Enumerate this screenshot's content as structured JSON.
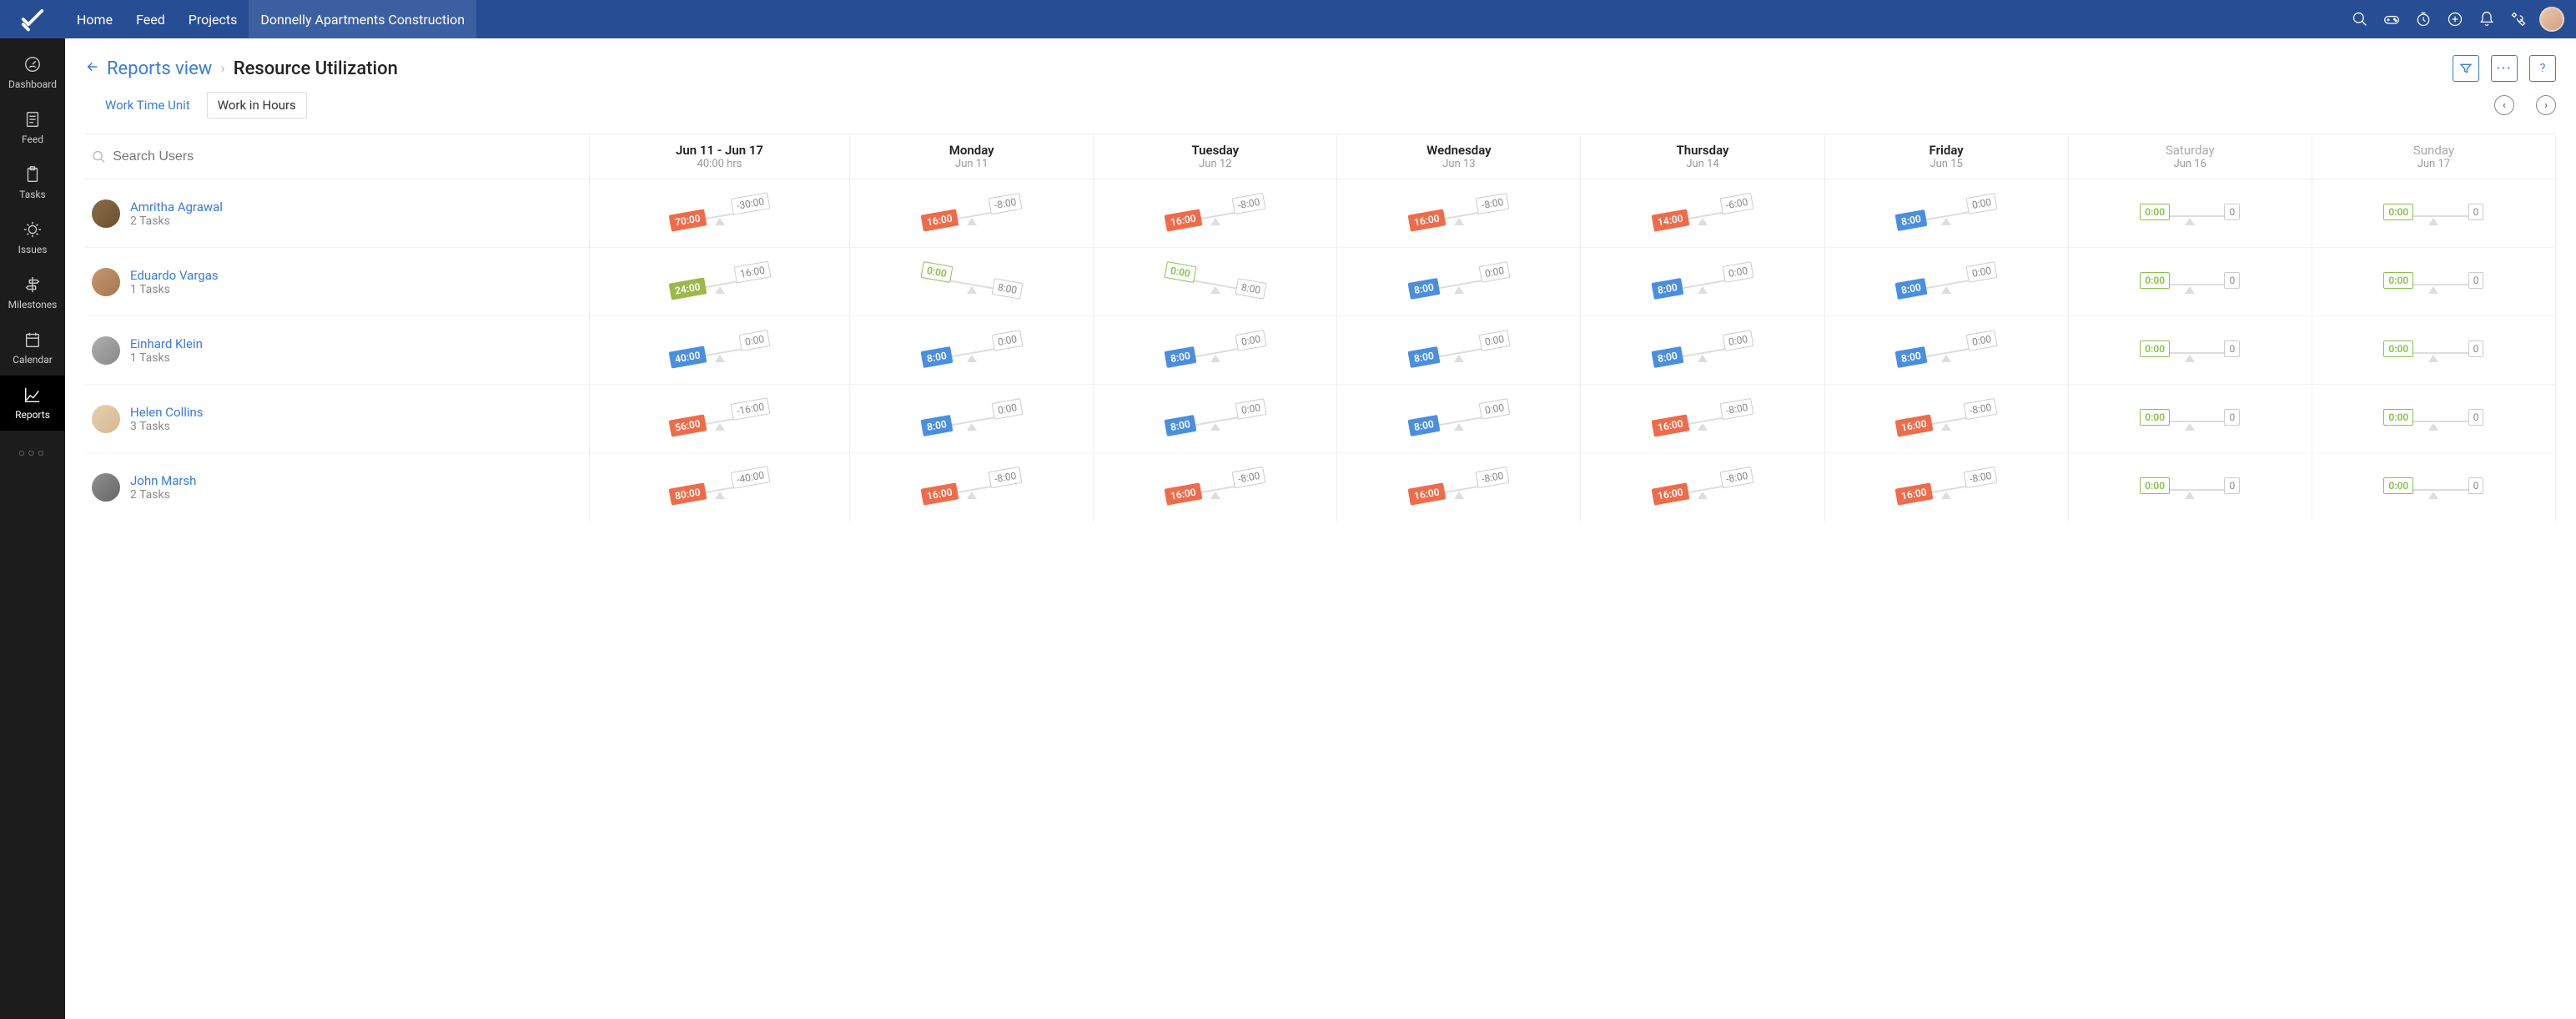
{
  "topnav": {
    "links": [
      "Home",
      "Feed",
      "Projects",
      "Donnelly Apartments Construction"
    ],
    "active_index": 3
  },
  "sidebar": {
    "items": [
      {
        "label": "Dashboard",
        "icon": "gauge"
      },
      {
        "label": "Feed",
        "icon": "doc"
      },
      {
        "label": "Tasks",
        "icon": "clipboard"
      },
      {
        "label": "Issues",
        "icon": "bug"
      },
      {
        "label": "Milestones",
        "icon": "signpost"
      },
      {
        "label": "Calendar",
        "icon": "calendar"
      },
      {
        "label": "Reports",
        "icon": "chart"
      }
    ],
    "active_index": 6
  },
  "breadcrumb": {
    "back": "Reports view",
    "current": "Resource Utilization"
  },
  "filter": {
    "unit_label": "Work Time Unit",
    "unit_value": "Work in Hours"
  },
  "search_placeholder": "Search Users",
  "colors": {
    "red": "#ef6b4a",
    "blue": "#4a8ee0",
    "green": "#8bc04a",
    "olive": "#9cb84a",
    "grey": "#cccccc"
  },
  "columns": {
    "total": {
      "line1": "Jun 11 - Jun 17",
      "line2": "40:00 hrs"
    },
    "days": [
      {
        "name": "Monday",
        "date": "Jun 11",
        "weekend": false
      },
      {
        "name": "Tuesday",
        "date": "Jun 12",
        "weekend": false
      },
      {
        "name": "Wednesday",
        "date": "Jun 13",
        "weekend": false
      },
      {
        "name": "Thursday",
        "date": "Jun 14",
        "weekend": false
      },
      {
        "name": "Friday",
        "date": "Jun 15",
        "weekend": false
      },
      {
        "name": "Saturday",
        "date": "Jun 16",
        "weekend": true
      },
      {
        "name": "Sunday",
        "date": "Jun 17",
        "weekend": true
      }
    ]
  },
  "rows": [
    {
      "name": "Amritha Agrawal",
      "tasks": "2 Tasks",
      "avatar": "c1",
      "cells": [
        {
          "left": "70:00",
          "left_color": "red",
          "right": "-30:00",
          "right_color": "grey",
          "tilt": "left"
        },
        {
          "left": "16:00",
          "left_color": "red",
          "right": "-8:00",
          "right_color": "grey",
          "tilt": "left"
        },
        {
          "left": "16:00",
          "left_color": "red",
          "right": "-8:00",
          "right_color": "grey",
          "tilt": "left"
        },
        {
          "left": "16:00",
          "left_color": "red",
          "right": "-8:00",
          "right_color": "grey",
          "tilt": "left"
        },
        {
          "left": "14:00",
          "left_color": "red",
          "right": "-6:00",
          "right_color": "grey",
          "tilt": "left"
        },
        {
          "left": "8:00",
          "left_color": "blue",
          "right": "0:00",
          "right_color": "grey",
          "tilt": "left"
        },
        {
          "left": "0:00",
          "left_color": "green",
          "right": "0",
          "right_color": "grey",
          "tilt": "flat"
        },
        {
          "left": "0:00",
          "left_color": "green",
          "right": "0",
          "right_color": "grey",
          "tilt": "flat"
        }
      ]
    },
    {
      "name": "Eduardo Vargas",
      "tasks": "1 Tasks",
      "avatar": "c2",
      "cells": [
        {
          "left": "24:00",
          "left_color": "olive",
          "right": "16:00",
          "right_color": "grey",
          "tilt": "left"
        },
        {
          "left": "0:00",
          "left_color": "green",
          "right": "8:00",
          "right_color": "grey",
          "tilt": "right"
        },
        {
          "left": "0:00",
          "left_color": "green",
          "right": "8:00",
          "right_color": "grey",
          "tilt": "right"
        },
        {
          "left": "8:00",
          "left_color": "blue",
          "right": "0:00",
          "right_color": "grey",
          "tilt": "left"
        },
        {
          "left": "8:00",
          "left_color": "blue",
          "right": "0:00",
          "right_color": "grey",
          "tilt": "left"
        },
        {
          "left": "8:00",
          "left_color": "blue",
          "right": "0:00",
          "right_color": "grey",
          "tilt": "left"
        },
        {
          "left": "0:00",
          "left_color": "green",
          "right": "0",
          "right_color": "grey",
          "tilt": "flat"
        },
        {
          "left": "0:00",
          "left_color": "green",
          "right": "0",
          "right_color": "grey",
          "tilt": "flat"
        }
      ]
    },
    {
      "name": "Einhard Klein",
      "tasks": "1 Tasks",
      "avatar": "c3",
      "cells": [
        {
          "left": "40:00",
          "left_color": "blue",
          "right": "0:00",
          "right_color": "grey",
          "tilt": "left"
        },
        {
          "left": "8:00",
          "left_color": "blue",
          "right": "0:00",
          "right_color": "grey",
          "tilt": "left"
        },
        {
          "left": "8:00",
          "left_color": "blue",
          "right": "0:00",
          "right_color": "grey",
          "tilt": "left"
        },
        {
          "left": "8:00",
          "left_color": "blue",
          "right": "0:00",
          "right_color": "grey",
          "tilt": "left"
        },
        {
          "left": "8:00",
          "left_color": "blue",
          "right": "0:00",
          "right_color": "grey",
          "tilt": "left"
        },
        {
          "left": "8:00",
          "left_color": "blue",
          "right": "0:00",
          "right_color": "grey",
          "tilt": "left"
        },
        {
          "left": "0:00",
          "left_color": "green",
          "right": "0",
          "right_color": "grey",
          "tilt": "flat"
        },
        {
          "left": "0:00",
          "left_color": "green",
          "right": "0",
          "right_color": "grey",
          "tilt": "flat"
        }
      ]
    },
    {
      "name": "Helen Collins",
      "tasks": "3 Tasks",
      "avatar": "c4",
      "cells": [
        {
          "left": "56:00",
          "left_color": "red",
          "right": "-16:00",
          "right_color": "grey",
          "tilt": "left"
        },
        {
          "left": "8:00",
          "left_color": "blue",
          "right": "0:00",
          "right_color": "grey",
          "tilt": "left"
        },
        {
          "left": "8:00",
          "left_color": "blue",
          "right": "0:00",
          "right_color": "grey",
          "tilt": "left"
        },
        {
          "left": "8:00",
          "left_color": "blue",
          "right": "0:00",
          "right_color": "grey",
          "tilt": "left"
        },
        {
          "left": "16:00",
          "left_color": "red",
          "right": "-8:00",
          "right_color": "grey",
          "tilt": "left"
        },
        {
          "left": "16:00",
          "left_color": "red",
          "right": "-8:00",
          "right_color": "grey",
          "tilt": "left"
        },
        {
          "left": "0:00",
          "left_color": "green",
          "right": "0",
          "right_color": "grey",
          "tilt": "flat"
        },
        {
          "left": "0:00",
          "left_color": "green",
          "right": "0",
          "right_color": "grey",
          "tilt": "flat"
        }
      ]
    },
    {
      "name": "John Marsh",
      "tasks": "2 Tasks",
      "avatar": "c5",
      "cells": [
        {
          "left": "80:00",
          "left_color": "red",
          "right": "-40:00",
          "right_color": "grey",
          "tilt": "left"
        },
        {
          "left": "16:00",
          "left_color": "red",
          "right": "-8:00",
          "right_color": "grey",
          "tilt": "left"
        },
        {
          "left": "16:00",
          "left_color": "red",
          "right": "-8:00",
          "right_color": "grey",
          "tilt": "left"
        },
        {
          "left": "16:00",
          "left_color": "red",
          "right": "-8:00",
          "right_color": "grey",
          "tilt": "left"
        },
        {
          "left": "16:00",
          "left_color": "red",
          "right": "-8:00",
          "right_color": "grey",
          "tilt": "left"
        },
        {
          "left": "16:00",
          "left_color": "red",
          "right": "-8:00",
          "right_color": "grey",
          "tilt": "left"
        },
        {
          "left": "0:00",
          "left_color": "green",
          "right": "0",
          "right_color": "grey",
          "tilt": "flat"
        },
        {
          "left": "0:00",
          "left_color": "green",
          "right": "0",
          "right_color": "grey",
          "tilt": "flat"
        }
      ]
    }
  ]
}
